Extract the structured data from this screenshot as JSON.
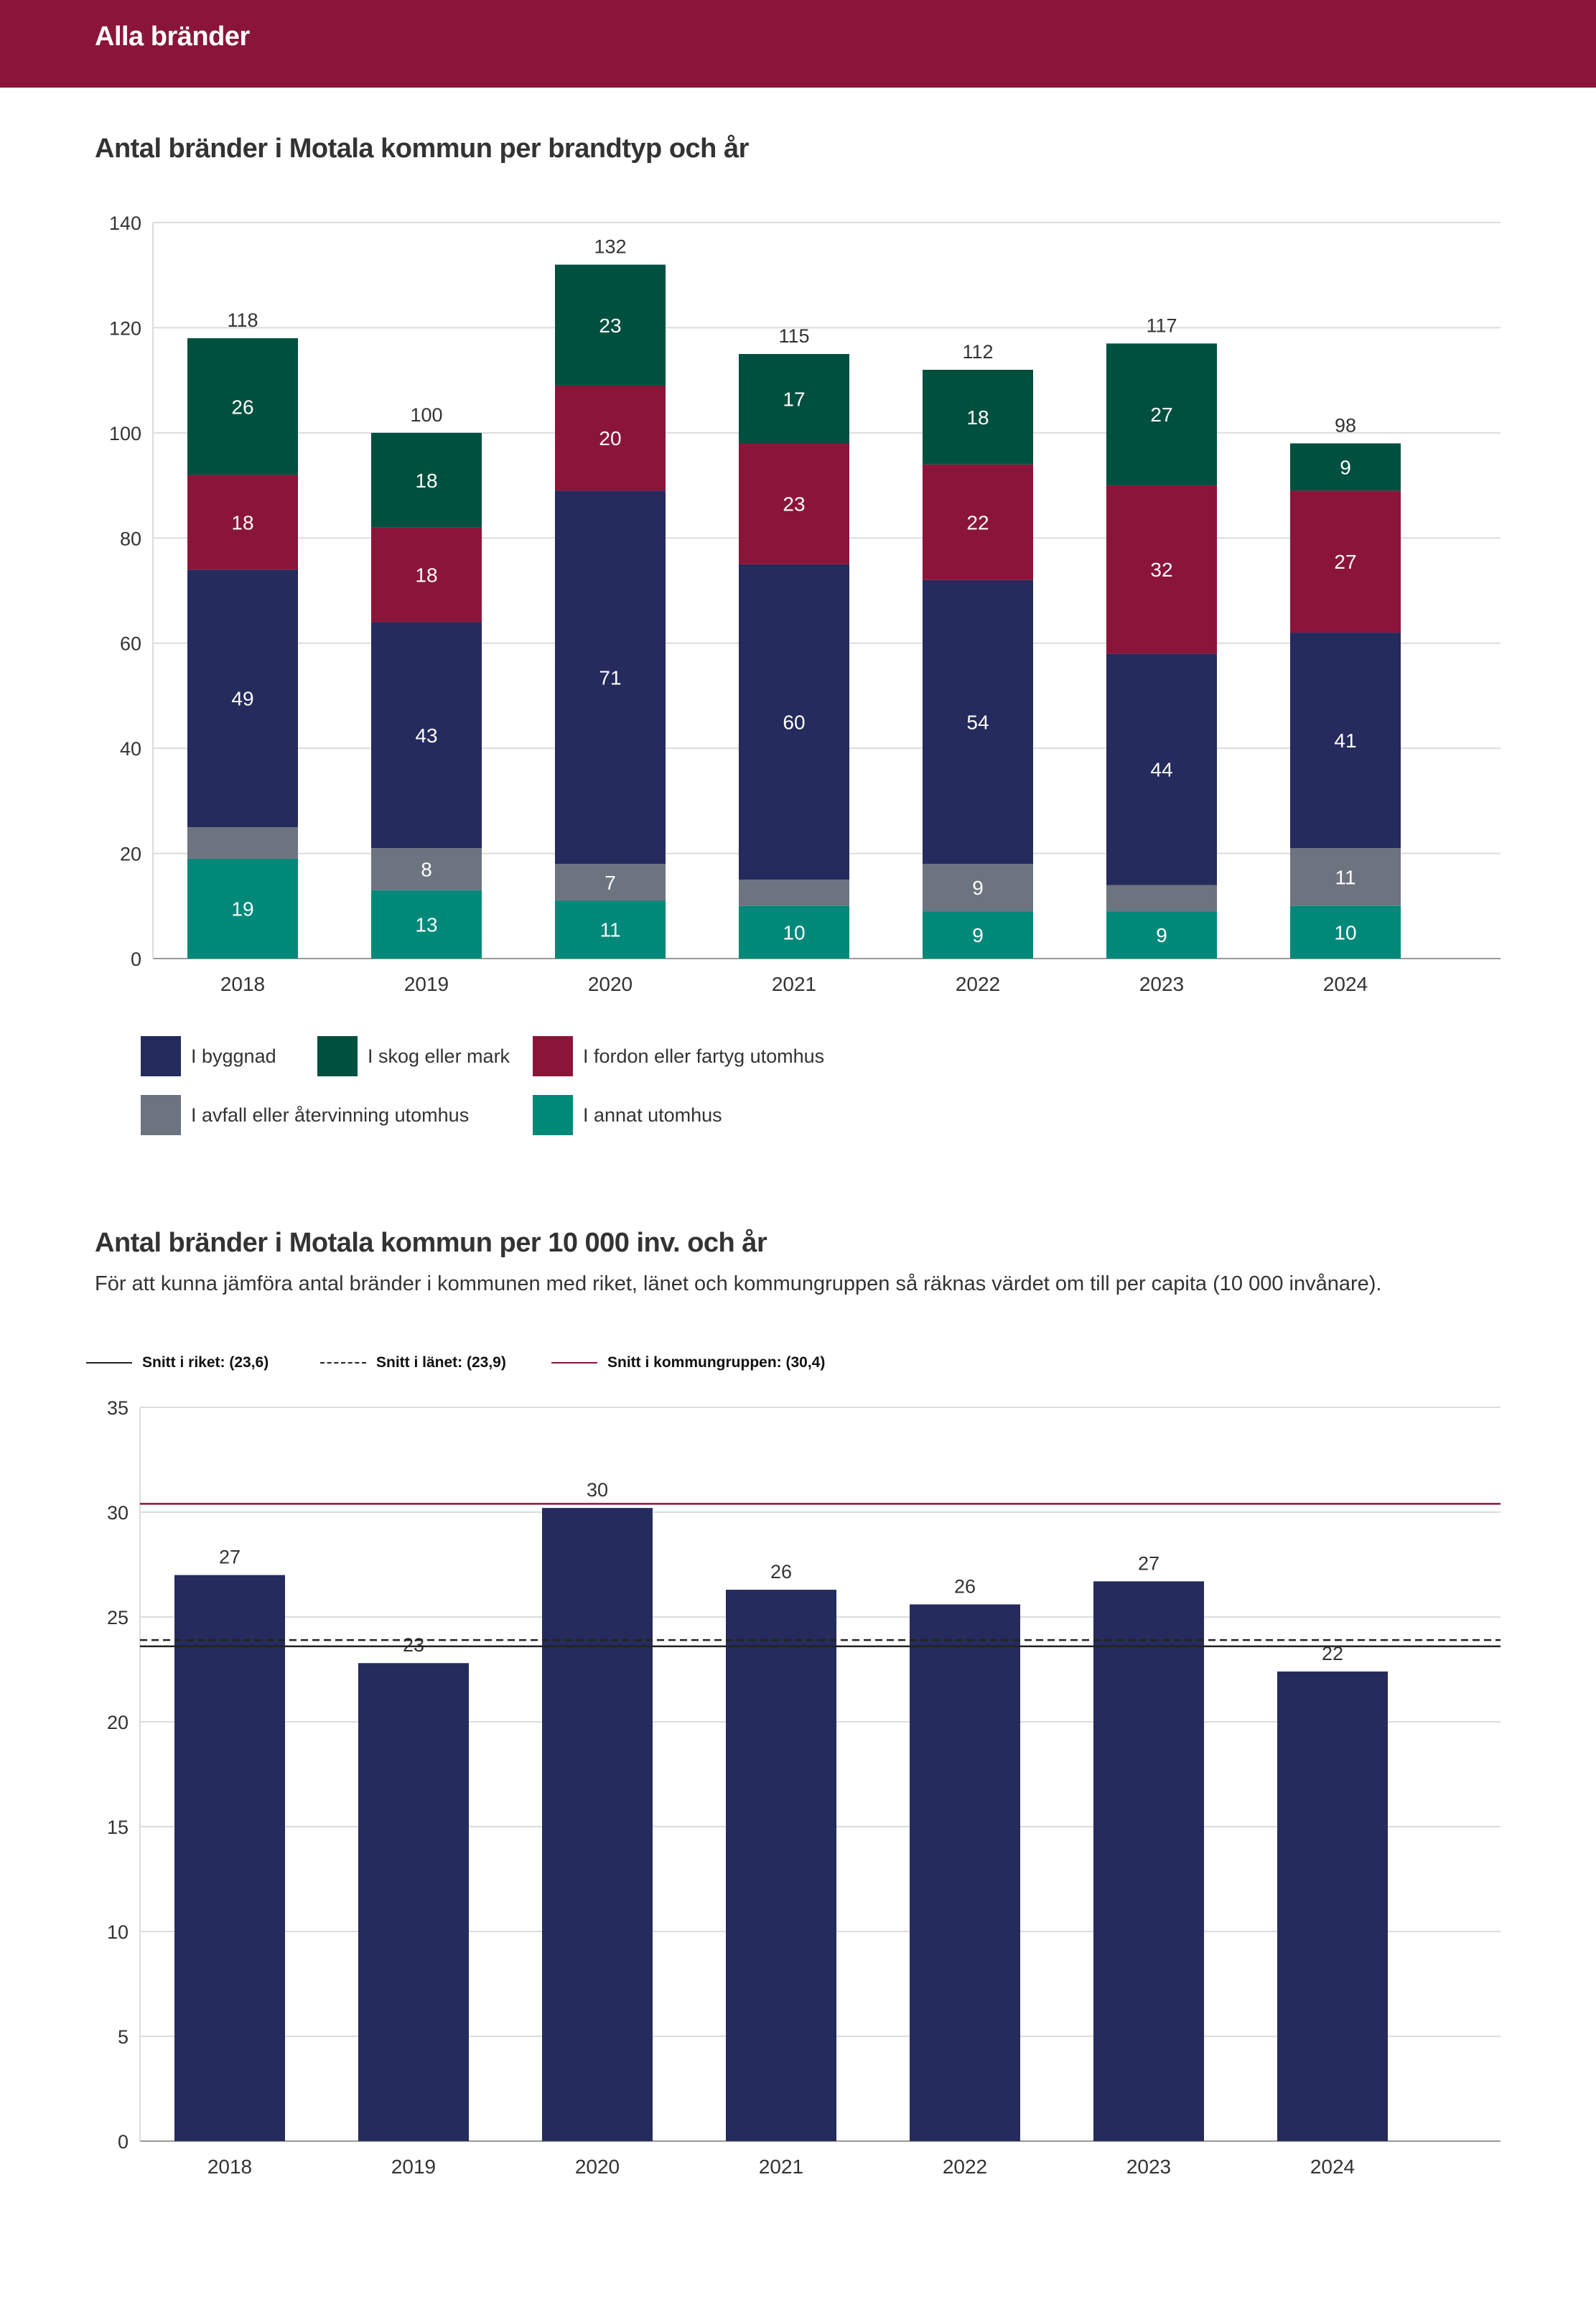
{
  "header": {
    "title": "Alla bränder"
  },
  "section1": {
    "title": "Antal bränder i Motala kommun per brandtyp och år"
  },
  "section2": {
    "title": "Antal bränder i Motala kommun per 10 000 inv. och år",
    "description": "För att kunna jämföra antal bränder i kommunen med riket, länet och kommungruppen så räknas värdet om till per capita (10 000 invånare)."
  },
  "colors": {
    "header_bg": "#8B1538",
    "byggnad": "#252B5C",
    "skog": "#00503F",
    "fordon": "#8B1538",
    "avfall": "#6C7480",
    "annat": "#008979",
    "bar2": "#252B5C",
    "riket_line": "#222222",
    "lanet_line": "#222222",
    "kommungrupp_line": "#8B1538"
  },
  "chart_data": [
    {
      "type": "bar",
      "stacked": true,
      "title": "Antal bränder i Motala kommun per brandtyp och år",
      "categories": [
        "2018",
        "2019",
        "2020",
        "2021",
        "2022",
        "2023",
        "2024"
      ],
      "series": [
        {
          "name": "I annat utomhus",
          "key": "annat",
          "values": [
            19,
            13,
            11,
            10,
            9,
            9,
            10
          ],
          "labels": [
            "19",
            "13",
            "11",
            "10",
            "9",
            "9",
            "10"
          ]
        },
        {
          "name": "I avfall eller återvinning utomhus",
          "key": "avfall",
          "values": [
            6,
            8,
            7,
            5,
            9,
            5,
            11
          ],
          "labels": [
            "",
            "8",
            "7",
            "",
            "9",
            "",
            "11"
          ]
        },
        {
          "name": "I byggnad",
          "key": "byggnad",
          "values": [
            49,
            43,
            71,
            60,
            54,
            44,
            41
          ],
          "labels": [
            "49",
            "43",
            "71",
            "60",
            "54",
            "44",
            "41"
          ]
        },
        {
          "name": "I fordon eller fartyg utomhus",
          "key": "fordon",
          "values": [
            18,
            18,
            20,
            23,
            22,
            32,
            27
          ],
          "labels": [
            "18",
            "18",
            "20",
            "23",
            "22",
            "32",
            "27"
          ]
        },
        {
          "name": "I skog eller mark",
          "key": "skog",
          "values": [
            26,
            18,
            23,
            17,
            18,
            27,
            9
          ],
          "labels": [
            "26",
            "18",
            "23",
            "17",
            "18",
            "27",
            "9"
          ]
        }
      ],
      "totals": [
        118,
        100,
        132,
        115,
        112,
        117,
        98
      ],
      "yticks": [
        "0",
        "20",
        "40",
        "60",
        "80",
        "100",
        "120",
        "140"
      ],
      "ylim": [
        0,
        140
      ],
      "legend": {
        "row1": [
          {
            "label": "I byggnad",
            "key": "byggnad"
          },
          {
            "label": "I skog eller mark",
            "key": "skog"
          },
          {
            "label": "I fordon eller fartyg utomhus",
            "key": "fordon"
          }
        ],
        "row2": [
          {
            "label": "I avfall eller återvinning utomhus",
            "key": "avfall"
          },
          {
            "label": "I annat utomhus",
            "key": "annat"
          }
        ]
      }
    },
    {
      "type": "bar",
      "title": "Antal bränder i Motala kommun per 10 000 inv. och år",
      "categories": [
        "2018",
        "2019",
        "2020",
        "2021",
        "2022",
        "2023",
        "2024"
      ],
      "values": [
        27.0,
        22.8,
        30.2,
        26.3,
        25.6,
        26.7,
        22.4
      ],
      "labels": [
        "27",
        "23",
        "30",
        "26",
        "26",
        "27",
        "22"
      ],
      "yticks": [
        "0",
        "5",
        "10",
        "15",
        "20",
        "25",
        "30",
        "35"
      ],
      "ylim": [
        0,
        35
      ],
      "reference_lines": [
        {
          "label": "Snitt i riket: (23,6)",
          "value": 23.6,
          "style": "solid",
          "key": "riket_line"
        },
        {
          "label": "Snitt i länet: (23,9)",
          "value": 23.9,
          "style": "dashed",
          "key": "lanet_line"
        },
        {
          "label": "Snitt i kommungruppen: (30,4)",
          "value": 30.4,
          "style": "solid",
          "key": "kommungrupp_line"
        }
      ]
    }
  ]
}
